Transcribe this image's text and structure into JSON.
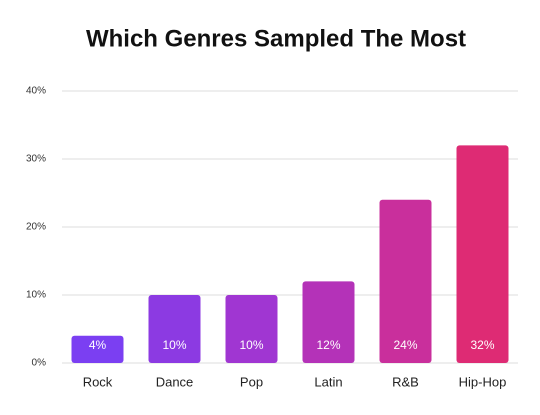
{
  "chart_data": {
    "type": "bar",
    "title": "Which Genres Sampled The Most",
    "categories": [
      "Rock",
      "Dance",
      "Pop",
      "Latin",
      "R&B",
      "Hip-Hop"
    ],
    "values": [
      4,
      10,
      10,
      12,
      24,
      32
    ],
    "value_labels": [
      "4%",
      "10%",
      "10%",
      "12%",
      "24%",
      "32%"
    ],
    "colors": [
      "#7b3ff2",
      "#8c3ae2",
      "#a036d2",
      "#b432b8",
      "#c92f9c",
      "#de2b74"
    ],
    "ylim": [
      0,
      40
    ],
    "yticks": [
      {
        "value": 0,
        "label": "0%"
      },
      {
        "value": 10,
        "label": "10%"
      },
      {
        "value": 20,
        "label": "20%"
      },
      {
        "value": 30,
        "label": "30%"
      },
      {
        "value": 40,
        "label": "40%"
      }
    ],
    "grid": true
  }
}
